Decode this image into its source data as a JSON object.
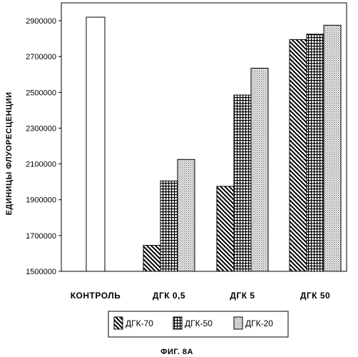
{
  "chart_data": {
    "type": "bar",
    "ylabel": "ЕДИНИЦЫ ФЛУОРЕСЦЕНЦИИ",
    "caption": "ФИГ. 8А",
    "ylim": [
      1500000,
      3000000
    ],
    "yticks": [
      "1500000",
      "1700000",
      "1900000",
      "2100000",
      "2300000",
      "2500000",
      "2700000",
      "2900000"
    ],
    "ytick_values": [
      1500000,
      1700000,
      1900000,
      2100000,
      2300000,
      2500000,
      2700000,
      2900000
    ],
    "categories": [
      "КОНТРОЛЬ",
      "ДГК 0,5",
      "ДГК 5",
      "ДГК 50"
    ],
    "control_value": 2920000,
    "series": [
      {
        "name": "ДГК-70",
        "pattern": "hatch",
        "values": [
          null,
          1645000,
          1975000,
          2795000
        ]
      },
      {
        "name": "ДГК-50",
        "pattern": "grid",
        "values": [
          null,
          2005000,
          2485000,
          2825000
        ]
      },
      {
        "name": "ДГК-20",
        "pattern": "dots",
        "values": [
          null,
          2125000,
          2635000,
          2875000
        ]
      }
    ],
    "grid": false,
    "legend_position": "bottom"
  }
}
